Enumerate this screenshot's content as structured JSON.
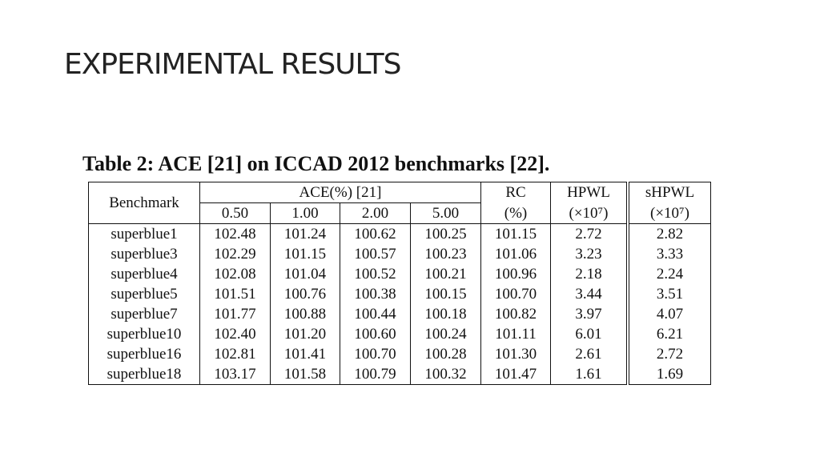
{
  "slide_title": "EXPERIMENTAL RESULTS",
  "table": {
    "caption": "Table 2: ACE [21] on ICCAD 2012 benchmarks [22].",
    "header_top": [
      "Benchmark",
      "ACE(%) [21]",
      "RC",
      "HPWL",
      "sHPWL"
    ],
    "header_bottom": [
      "0.50",
      "1.00",
      "2.00",
      "5.00",
      "(%)",
      "(×10⁷)",
      "(×10⁷)"
    ],
    "rows": [
      [
        "superblue1",
        "102.48",
        "101.24",
        "100.62",
        "100.25",
        "101.15",
        "2.72",
        "2.82"
      ],
      [
        "superblue3",
        "102.29",
        "101.15",
        "100.57",
        "100.23",
        "101.06",
        "3.23",
        "3.33"
      ],
      [
        "superblue4",
        "102.08",
        "101.04",
        "100.52",
        "100.21",
        "100.96",
        "2.18",
        "2.24"
      ],
      [
        "superblue5",
        "101.51",
        "100.76",
        "100.38",
        "100.15",
        "100.70",
        "3.44",
        "3.51"
      ],
      [
        "superblue7",
        "101.77",
        "100.88",
        "100.44",
        "100.18",
        "100.82",
        "3.97",
        "4.07"
      ],
      [
        "superblue10",
        "102.40",
        "101.20",
        "100.60",
        "100.24",
        "101.11",
        "6.01",
        "6.21"
      ],
      [
        "superblue16",
        "102.81",
        "101.41",
        "100.70",
        "100.28",
        "101.30",
        "2.61",
        "2.72"
      ],
      [
        "superblue18",
        "103.17",
        "101.58",
        "100.79",
        "100.32",
        "101.47",
        "1.61",
        "1.69"
      ]
    ]
  }
}
